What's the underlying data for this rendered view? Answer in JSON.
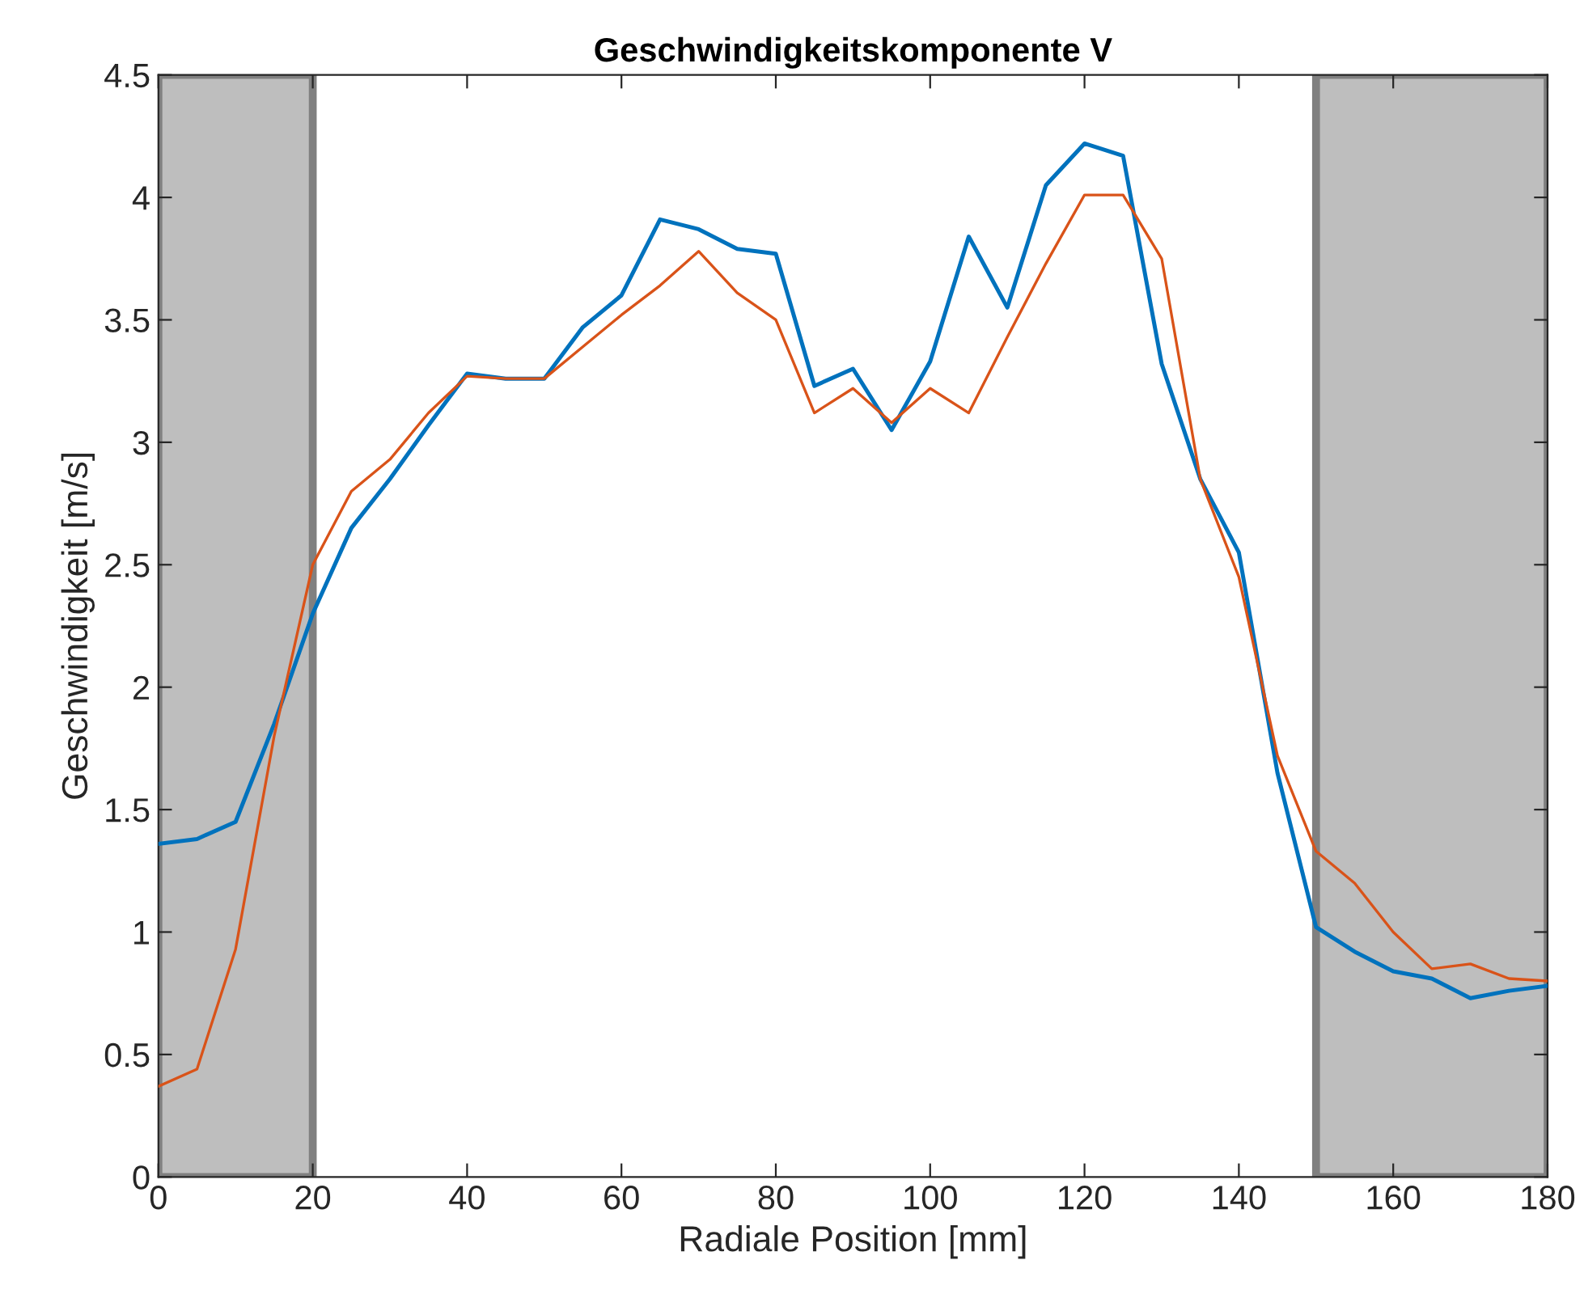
{
  "chart_data": {
    "type": "line",
    "title": "Geschwindigkeitskomponente V",
    "xlabel": "Radiale Position [mm]",
    "ylabel": "Geschwindigkeit [m/s]",
    "x": [
      0,
      5,
      10,
      15,
      20,
      25,
      30,
      35,
      40,
      45,
      50,
      55,
      60,
      65,
      70,
      75,
      80,
      85,
      90,
      95,
      100,
      105,
      110,
      115,
      120,
      125,
      130,
      135,
      140,
      145,
      150,
      155,
      160,
      165,
      170,
      175,
      180
    ],
    "series": [
      {
        "color": "#0072bd",
        "values": [
          1.36,
          1.38,
          1.45,
          1.85,
          2.3,
          2.65,
          2.85,
          3.07,
          3.28,
          3.26,
          3.26,
          3.47,
          3.6,
          3.91,
          3.87,
          3.79,
          3.77,
          3.23,
          3.3,
          3.05,
          3.33,
          3.84,
          3.55,
          4.05,
          4.22,
          4.17,
          3.32,
          2.85,
          2.55,
          1.65,
          1.02,
          0.92,
          0.84,
          0.81,
          0.73,
          0.76,
          0.78
        ]
      },
      {
        "color": "#d95319",
        "values": [
          0.37,
          0.44,
          0.93,
          1.8,
          2.5,
          2.8,
          2.93,
          3.12,
          3.27,
          3.26,
          3.26,
          3.39,
          3.52,
          3.64,
          3.78,
          3.61,
          3.5,
          3.12,
          3.22,
          3.08,
          3.22,
          3.12,
          3.43,
          3.73,
          4.01,
          4.01,
          3.75,
          2.85,
          2.45,
          1.72,
          1.33,
          1.2,
          1.0,
          0.85,
          0.87,
          0.81,
          0.8
        ]
      }
    ],
    "bands": [
      {
        "axis": "x",
        "from": 0,
        "to": 20,
        "color": "#bebebe"
      },
      {
        "axis": "x",
        "from": 150,
        "to": 180,
        "color": "#bebebe"
      }
    ],
    "xlim": [
      0,
      180
    ],
    "xticks": [
      0,
      20,
      40,
      60,
      80,
      100,
      120,
      140,
      160,
      180
    ],
    "ylim": [
      0,
      4.5
    ],
    "yticks": [
      0,
      0.5,
      1,
      1.5,
      2,
      2.5,
      3,
      3.5,
      4,
      4.5
    ],
    "grid": false,
    "legend": false,
    "marker": "none",
    "line_style": "solid"
  }
}
